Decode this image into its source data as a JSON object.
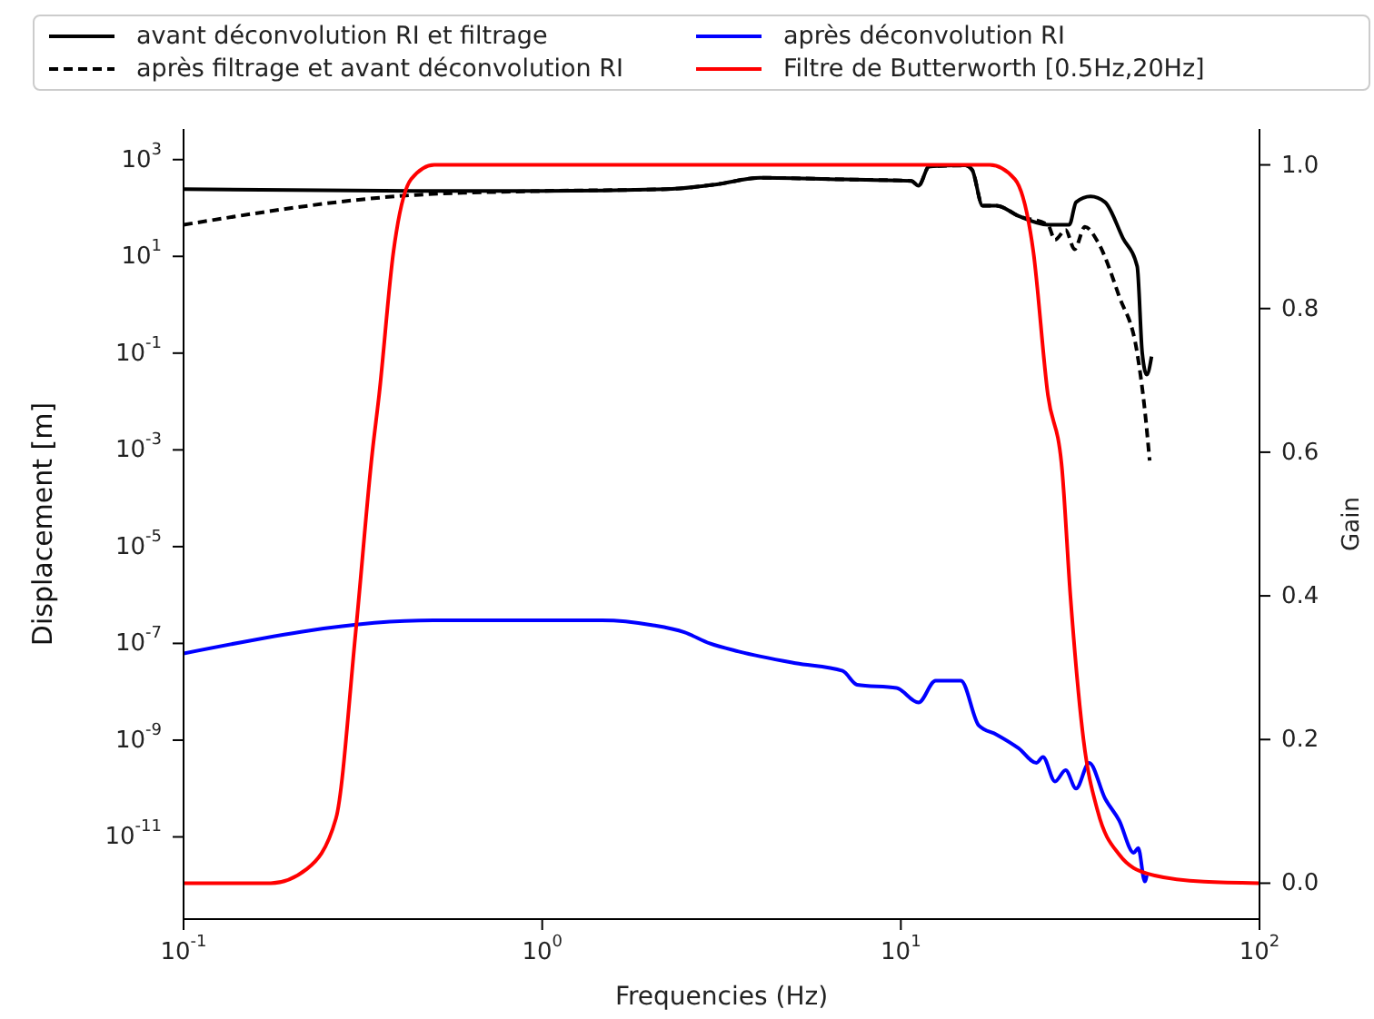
{
  "chart_data": {
    "type": "line",
    "xlabel": "Frequencies (Hz)",
    "ylabel": "Displacement [m]",
    "y2label": "Gain",
    "log": "xy",
    "legend": "top",
    "marker": "none",
    "xlim": [
      0.1,
      100
    ],
    "xticks": [
      {
        "value": 0.1,
        "label": "10$^{-1}$"
      },
      {
        "value": 1,
        "label": "10$^{0}$"
      },
      {
        "value": 10,
        "label": "10$^{1}$"
      },
      {
        "value": 100,
        "label": "10$^{2}$"
      }
    ],
    "ylim": [
      2e-13,
      4300
    ],
    "yticks": [
      {
        "value": 1e-11,
        "label": "10$^{-11}$"
      },
      {
        "value": 1e-09,
        "label": "10$^{-9}$"
      },
      {
        "value": 1e-07,
        "label": "10$^{-7}$"
      },
      {
        "value": 1e-05,
        "label": "10$^{-5}$"
      },
      {
        "value": 0.001,
        "label": "10$^{-3}$"
      },
      {
        "value": 0.1,
        "label": "10$^{-1}$"
      },
      {
        "value": 10,
        "label": "10$^{1}$"
      },
      {
        "value": 1000,
        "label": "10$^{3}$"
      }
    ],
    "y2lim": [
      -0.05,
      1.05
    ],
    "y2ticks": [
      {
        "value": 0,
        "label": "0.0"
      },
      {
        "value": 0.2,
        "label": "0.2"
      },
      {
        "value": 0.4,
        "label": "0.4"
      },
      {
        "value": 0.6,
        "label": "0.6"
      },
      {
        "value": 0.8,
        "label": "0.8"
      },
      {
        "value": 1,
        "label": "1.0"
      }
    ],
    "series": [
      {
        "name": "avant déconvolution RI et filtrage",
        "color": "#000000",
        "line_style": "solid",
        "x": [
          0.1,
          0.5,
          1.0,
          2.22,
          3.07,
          4.05,
          7.05,
          10.7,
          11.2,
          12.0,
          15.1,
          15.8,
          16.9,
          18.5,
          21.3,
          25.7,
          29.5,
          30.8,
          33.8,
          37.1,
          41.6,
          45.6,
          47.1,
          48.5,
          50.0
        ],
        "values": [
          245,
          224,
          224,
          245,
          309,
          420,
          389,
          363,
          288,
          724,
          759,
          617,
          112,
          112,
          68,
          45,
          45,
          132,
          174,
          132,
          24,
          6.2,
          0.1,
          0.036,
          0.085
        ]
      },
      {
        "name": "après filtrage et avant déconvolution RI",
        "color": "#000000",
        "line_style": "dashed",
        "x": [
          0.1,
          0.443,
          1.0,
          2.22,
          3.07,
          4.05,
          7.05,
          10.7,
          11.2,
          12.0,
          15.1,
          15.8,
          16.9,
          18.5,
          21.3,
          25.7,
          26.9,
          28.8,
          30.5,
          32.6,
          35.4,
          40.6,
          45.6,
          47.9,
          49.4
        ],
        "values": [
          45,
          186,
          224,
          245,
          309,
          420,
          389,
          363,
          288,
          724,
          759,
          617,
          112,
          112,
          68,
          45,
          22,
          35,
          14,
          41,
          20,
          1.5,
          0.1,
          0.0065,
          0.0006
        ]
      },
      {
        "name": "après déconvolution RI",
        "color": "#0000ff",
        "line_style": "solid",
        "x": [
          0.1,
          0.497,
          1.47,
          2.02,
          2.49,
          2.93,
          3.53,
          5.09,
          6.88,
          7.55,
          9.73,
          11.2,
          12.5,
          14.7,
          16.5,
          18.5,
          21.3,
          23.9,
          24.9,
          26.9,
          28.8,
          30.8,
          33.5,
          37.1,
          40.6,
          44.6,
          45.9,
          47.9,
          48.5
        ],
        "values": [
          6.2e-08,
          3e-07,
          3e-07,
          2.4e-07,
          1.7e-07,
          1e-07,
          6.8e-08,
          3.9e-08,
          2.7e-08,
          1.4e-08,
          1.2e-08,
          6e-09,
          1.7e-08,
          1.7e-08,
          2e-09,
          1.3e-09,
          6.8e-10,
          3.4e-10,
          4.5e-10,
          1.4e-10,
          2.4e-10,
          1e-10,
          3.4e-10,
          6.2e-11,
          2.2e-11,
          4.7e-12,
          5.9e-12,
          1.2e-12,
          1.6e-12
        ]
      },
      {
        "name": "Filtre de Butterworth [0.5Hz,20Hz]",
        "color": "#ff0000",
        "line_style": "solid",
        "axis": "y2",
        "x": [
          0.1,
          0.175,
          0.221,
          0.266,
          0.302,
          0.336,
          0.351,
          0.385,
          0.431,
          0.5,
          17.7,
          20.8,
          23.4,
          25.7,
          28.1,
          29.7,
          32.3,
          35.4,
          40.6,
          48.9,
          70,
          100
        ],
        "values": [
          0,
          0,
          0.02,
          0.09,
          0.35,
          0.6,
          0.68,
          0.88,
          0.98,
          1.0,
          1.0,
          0.98,
          0.88,
          0.68,
          0.58,
          0.4,
          0.2,
          0.1,
          0.04,
          0.013,
          0.002,
          0
        ]
      }
    ]
  }
}
